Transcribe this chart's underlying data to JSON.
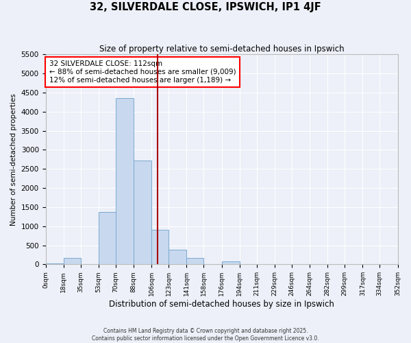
{
  "title": "32, SILVERDALE CLOSE, IPSWICH, IP1 4JF",
  "subtitle": "Size of property relative to semi-detached houses in Ipswich",
  "xlabel": "Distribution of semi-detached houses by size in Ipswich",
  "ylabel": "Number of semi-detached properties",
  "bin_edges": [
    0,
    18,
    35,
    53,
    70,
    88,
    106,
    123,
    141,
    158,
    176,
    194,
    211,
    229,
    246,
    264,
    282,
    299,
    317,
    334,
    352
  ],
  "bin_labels": [
    "0sqm",
    "18sqm",
    "35sqm",
    "53sqm",
    "70sqm",
    "88sqm",
    "106sqm",
    "123sqm",
    "141sqm",
    "158sqm",
    "176sqm",
    "194sqm",
    "211sqm",
    "229sqm",
    "246sqm",
    "264sqm",
    "282sqm",
    "299sqm",
    "317sqm",
    "334sqm",
    "352sqm"
  ],
  "counts": [
    20,
    170,
    0,
    1380,
    4350,
    2720,
    900,
    390,
    170,
    0,
    80,
    0,
    0,
    0,
    0,
    0,
    0,
    0,
    0,
    0
  ],
  "bar_color": "#c8d8ee",
  "bar_edge_color": "#7aaad0",
  "property_size": 112,
  "vline_color": "#aa0000",
  "annotation_text": "32 SILVERDALE CLOSE: 112sqm\n← 88% of semi-detached houses are smaller (9,009)\n12% of semi-detached houses are larger (1,189) →",
  "ylim": [
    0,
    5500
  ],
  "yticks": [
    0,
    500,
    1000,
    1500,
    2000,
    2500,
    3000,
    3500,
    4000,
    4500,
    5000,
    5500
  ],
  "background_color": "#edf0f8",
  "grid_color": "white",
  "footer_line1": "Contains HM Land Registry data © Crown copyright and database right 2025.",
  "footer_line2": "Contains public sector information licensed under the Open Government Licence v3.0."
}
